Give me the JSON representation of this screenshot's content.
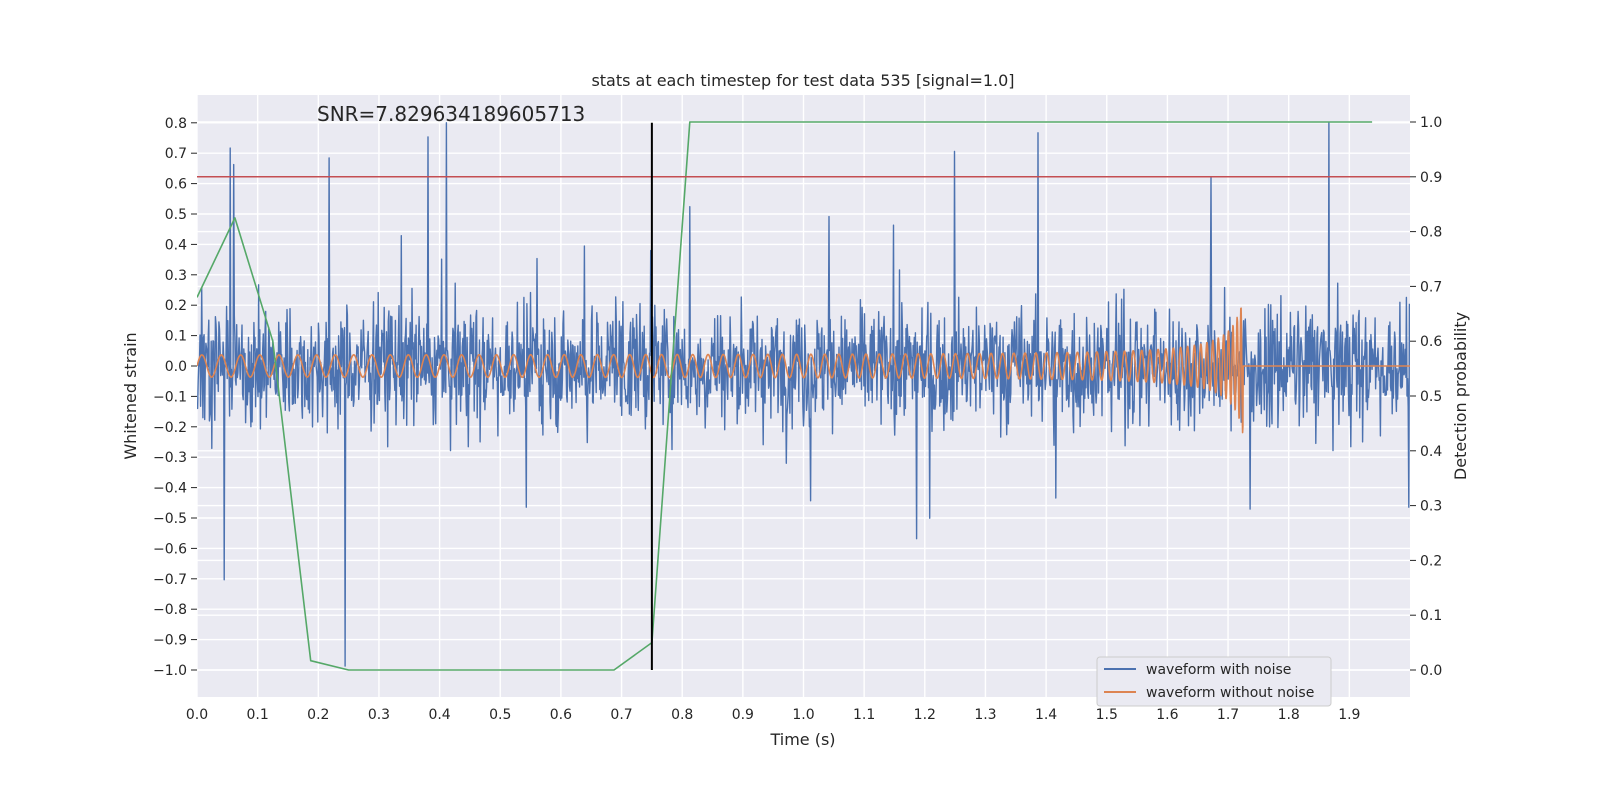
{
  "chart_data": {
    "type": "line",
    "title": "stats at each timestep for test data 535 [signal=1.0]",
    "annotation": "SNR=7.829634189605713",
    "xlabel": "Time (s)",
    "ylabel": "Whitened strain",
    "y2label": "Detection probability",
    "xlim": [
      0.0,
      2.0
    ],
    "ylim": [
      -1.09,
      0.89
    ],
    "y2lim": [
      -0.05,
      1.05
    ],
    "xticks": [
      "0.0",
      "0.1",
      "0.2",
      "0.3",
      "0.4",
      "0.5",
      "0.6",
      "0.7",
      "0.8",
      "0.9",
      "1.0",
      "1.1",
      "1.2",
      "1.3",
      "1.4",
      "1.5",
      "1.6",
      "1.7",
      "1.8",
      "1.9"
    ],
    "yticks": [
      "0.8",
      "0.7",
      "0.6",
      "0.5",
      "0.4",
      "0.3",
      "0.2",
      "0.1",
      "0.0",
      "−0.1",
      "−0.2",
      "−0.3",
      "−0.4",
      "−0.5",
      "−0.6",
      "−0.7",
      "−0.8",
      "−0.9",
      "−1.0"
    ],
    "y2ticks": [
      "1.0",
      "0.9",
      "0.8",
      "0.7",
      "0.6",
      "0.5",
      "0.4",
      "0.3",
      "0.2",
      "0.1",
      "0.0"
    ],
    "threshold": {
      "value": 0.9,
      "axis": "right",
      "color": "#c44e52"
    },
    "marker_line": {
      "x": 0.75,
      "y_range": [
        -1.0,
        0.8
      ],
      "color": "#000000"
    },
    "legend": {
      "placement": "lower-right",
      "entries": [
        {
          "label": "waveform with noise",
          "color": "#4c72b0"
        },
        {
          "label": "waveform without noise",
          "color": "#dd8452"
        }
      ]
    },
    "series": [
      {
        "name": "waveform with noise",
        "color": "#4c72b0",
        "axis": "left",
        "kind": "noise",
        "amplitude_std": 0.17,
        "range": [
          -1.0,
          0.8
        ]
      },
      {
        "name": "waveform without noise",
        "color": "#dd8452",
        "axis": "left",
        "kind": "chirp",
        "base_amplitude": 0.035,
        "peak_amplitude": 0.23,
        "merger_time": 1.725
      },
      {
        "name": "detection probability",
        "color": "#55a868",
        "axis": "right",
        "x": [
          0.0,
          0.0625,
          0.125,
          0.1875,
          0.25,
          0.6875,
          0.75,
          0.8125,
          1.9375
        ],
        "y": [
          0.68,
          0.825,
          0.6,
          0.017,
          0.0,
          0.0,
          0.05,
          1.0,
          1.0
        ]
      }
    ]
  }
}
